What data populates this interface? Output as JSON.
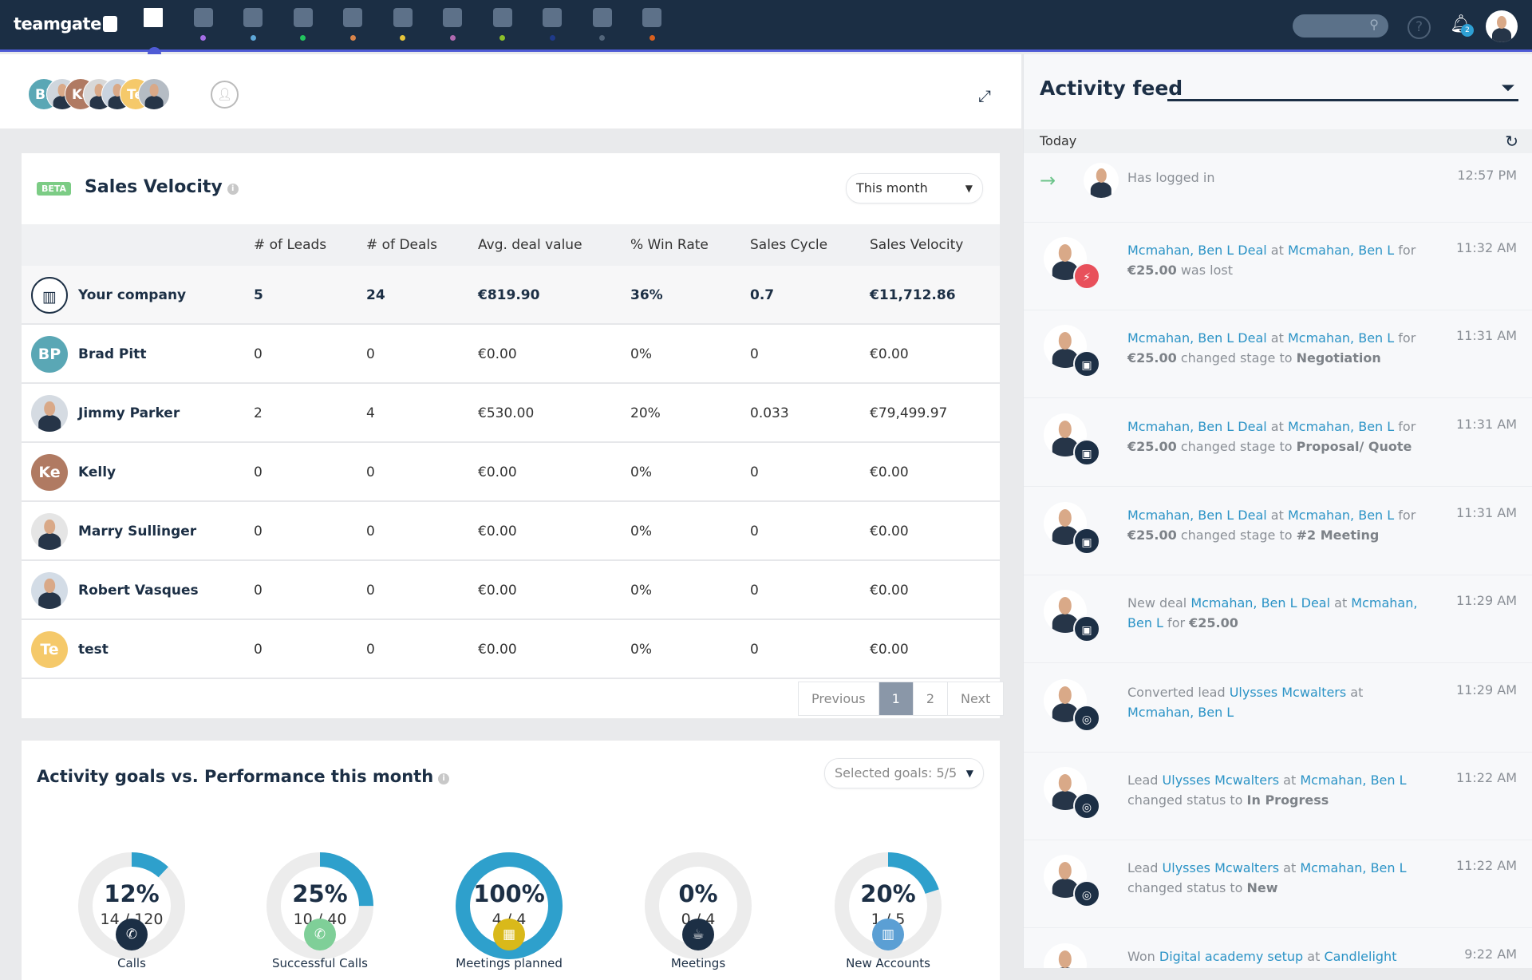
{
  "app": {
    "logo": "teamgate"
  },
  "nav": {
    "icons": [
      {
        "name": "dashboard-icon",
        "dot": ""
      },
      {
        "name": "leads-target-icon",
        "dot": "#a46ee6"
      },
      {
        "name": "companies-icon",
        "dot": "#5ea7d8"
      },
      {
        "name": "contacts-icon",
        "dot": "#22c55e"
      },
      {
        "name": "deals-briefcase-icon",
        "dot": "#d8844a"
      },
      {
        "name": "calendar-icon",
        "dot": "#e5c43a"
      },
      {
        "name": "products-bag-icon",
        "dot": "#b06ab0"
      },
      {
        "name": "attachments-icon",
        "dot": "#8bbf2a"
      },
      {
        "name": "reports-pie-icon",
        "dot": "#1f3a8a"
      },
      {
        "name": "notes-icon",
        "dot": "#52657a"
      },
      {
        "name": "documents-icon",
        "dot": "#d9601e"
      }
    ],
    "notification_count": "2",
    "help": "?"
  },
  "team_avatars": [
    {
      "initials": "BP",
      "color": "#5aa7b5"
    },
    {
      "initials": "",
      "color": "#cfd6dd"
    },
    {
      "initials": "Ke",
      "color": "#b07a62"
    },
    {
      "initials": "",
      "color": "#d8d8d8"
    },
    {
      "initials": "",
      "color": "#c9d3df"
    },
    {
      "initials": "Te",
      "color": "#f5c96a"
    },
    {
      "initials": "",
      "color": "#b5bcc4"
    }
  ],
  "sales_velocity": {
    "badge": "BETA",
    "title": "Sales Velocity",
    "period": "This month",
    "columns": [
      "# of Leads",
      "# of Deals",
      "Avg. deal value",
      "% Win Rate",
      "Sales Cycle",
      "Sales Velocity"
    ],
    "rows": [
      {
        "name": "Your company",
        "initials": "",
        "avatar_color": "#fff",
        "values": [
          "5",
          "24",
          "€819.90",
          "36%",
          "0.7",
          "€11,712.86"
        ]
      },
      {
        "name": "Brad Pitt",
        "initials": "BP",
        "avatar_color": "#5aa7b5",
        "values": [
          "0",
          "0",
          "€0.00",
          "0%",
          "0",
          "€0.00"
        ]
      },
      {
        "name": "Jimmy Parker",
        "initials": "",
        "avatar_color": "#d5dbe2",
        "values": [
          "2",
          "4",
          "€530.00",
          "20%",
          "0.033",
          "€79,499.97"
        ]
      },
      {
        "name": "Kelly",
        "initials": "Ke",
        "avatar_color": "#b07a62",
        "values": [
          "0",
          "0",
          "€0.00",
          "0%",
          "0",
          "€0.00"
        ]
      },
      {
        "name": "Marry Sullinger",
        "initials": "",
        "avatar_color": "#e5e5e5",
        "values": [
          "0",
          "0",
          "€0.00",
          "0%",
          "0",
          "€0.00"
        ]
      },
      {
        "name": "Robert Vasques",
        "initials": "",
        "avatar_color": "#d3dce6",
        "values": [
          "0",
          "0",
          "€0.00",
          "0%",
          "0",
          "€0.00"
        ]
      },
      {
        "name": "test",
        "initials": "Te",
        "avatar_color": "#f5c96a",
        "values": [
          "0",
          "0",
          "€0.00",
          "0%",
          "0",
          "€0.00"
        ]
      }
    ],
    "pagination": {
      "previous": "Previous",
      "pages": [
        "1",
        "2"
      ],
      "current": "1",
      "next": "Next"
    }
  },
  "activity_goals": {
    "title": "Activity goals vs. Performance this month",
    "selected": "Selected goals: 5/5",
    "accent": "#2ea0cc",
    "goals": [
      {
        "label": "Calls",
        "percent": "12%",
        "fraction": "14 / 120",
        "value": 0.12,
        "icon": "phone-icon",
        "glyph": "✆",
        "color": "#1c2f45"
      },
      {
        "label": "Successful Calls",
        "percent": "25%",
        "fraction": "10 / 40",
        "value": 0.25,
        "icon": "phone-success-icon",
        "glyph": "✆",
        "color": "#7fcf98"
      },
      {
        "label": "Meetings planned",
        "percent": "100%",
        "fraction": "4 / 4",
        "value": 1,
        "icon": "calendar-icon",
        "glyph": "▦",
        "color": "#d9b91a"
      },
      {
        "label": "Meetings",
        "percent": "0%",
        "fraction": "0 / 4",
        "value": 0,
        "icon": "coffee-cup-icon",
        "glyph": "☕",
        "color": "#1c2f45"
      },
      {
        "label": "New Accounts",
        "percent": "20%",
        "fraction": "1 / 5",
        "value": 0.2,
        "icon": "building-icon",
        "glyph": "▥",
        "color": "#5b9fd4"
      }
    ]
  },
  "feed": {
    "title": "Activity feed",
    "group": "Today",
    "items": [
      {
        "time": "12:57 PM",
        "badge": "login-arrow-icon",
        "badge_color": "",
        "segments": [
          {
            "t": "Has logged in",
            "k": "plain"
          }
        ]
      },
      {
        "time": "11:32 AM",
        "badge": "lightning-icon",
        "badge_color": "#e8505b",
        "segments": [
          {
            "t": "Mcmahan, Ben L Deal",
            "k": "link"
          },
          {
            "t": " at ",
            "k": "plain"
          },
          {
            "t": "Mcmahan, Ben L",
            "k": "link"
          },
          {
            "t": " for ",
            "k": "plain"
          },
          {
            "t": "€25.00",
            "k": "bold"
          },
          {
            "t": " was lost",
            "k": "plain"
          }
        ]
      },
      {
        "time": "11:31 AM",
        "badge": "briefcase-icon",
        "badge_color": "#1c2f45",
        "segments": [
          {
            "t": "Mcmahan, Ben L Deal",
            "k": "link"
          },
          {
            "t": " at ",
            "k": "plain"
          },
          {
            "t": "Mcmahan, Ben L",
            "k": "link"
          },
          {
            "t": " for ",
            "k": "plain"
          },
          {
            "t": "€25.00",
            "k": "bold"
          },
          {
            "t": " changed stage to ",
            "k": "plain"
          },
          {
            "t": "Negotiation",
            "k": "bold"
          }
        ]
      },
      {
        "time": "11:31 AM",
        "badge": "briefcase-icon",
        "badge_color": "#1c2f45",
        "segments": [
          {
            "t": "Mcmahan, Ben L Deal",
            "k": "link"
          },
          {
            "t": " at ",
            "k": "plain"
          },
          {
            "t": "Mcmahan, Ben L",
            "k": "link"
          },
          {
            "t": " for ",
            "k": "plain"
          },
          {
            "t": "€25.00",
            "k": "bold"
          },
          {
            "t": " changed stage to ",
            "k": "plain"
          },
          {
            "t": "Proposal/ Quote",
            "k": "bold"
          }
        ]
      },
      {
        "time": "11:31 AM",
        "badge": "briefcase-icon",
        "badge_color": "#1c2f45",
        "segments": [
          {
            "t": "Mcmahan, Ben L Deal",
            "k": "link"
          },
          {
            "t": " at ",
            "k": "plain"
          },
          {
            "t": "Mcmahan, Ben L",
            "k": "link"
          },
          {
            "t": " for ",
            "k": "plain"
          },
          {
            "t": "€25.00",
            "k": "bold"
          },
          {
            "t": " changed stage to ",
            "k": "plain"
          },
          {
            "t": "#2 Meeting",
            "k": "bold"
          }
        ]
      },
      {
        "time": "11:29 AM",
        "badge": "briefcase-icon",
        "badge_color": "#1c2f45",
        "segments": [
          {
            "t": "New deal ",
            "k": "plain"
          },
          {
            "t": "Mcmahan, Ben L Deal",
            "k": "link"
          },
          {
            "t": " at ",
            "k": "plain"
          },
          {
            "t": "Mcmahan, Ben L",
            "k": "link"
          },
          {
            "t": " for ",
            "k": "plain"
          },
          {
            "t": "€25.00",
            "k": "bold"
          }
        ]
      },
      {
        "time": "11:29 AM",
        "badge": "target-icon",
        "badge_color": "#1c2f45",
        "segments": [
          {
            "t": "Converted lead ",
            "k": "plain"
          },
          {
            "t": "Ulysses Mcwalters",
            "k": "link"
          },
          {
            "t": " at ",
            "k": "plain"
          },
          {
            "t": "Mcmahan, Ben L",
            "k": "link"
          }
        ]
      },
      {
        "time": "11:22 AM",
        "badge": "target-icon",
        "badge_color": "#1c2f45",
        "segments": [
          {
            "t": "Lead ",
            "k": "plain"
          },
          {
            "t": "Ulysses Mcwalters",
            "k": "link"
          },
          {
            "t": " at ",
            "k": "plain"
          },
          {
            "t": "Mcmahan, Ben L",
            "k": "link"
          },
          {
            "t": " changed status to ",
            "k": "plain"
          },
          {
            "t": "In Progress",
            "k": "bold"
          }
        ]
      },
      {
        "time": "11:22 AM",
        "badge": "target-icon",
        "badge_color": "#1c2f45",
        "segments": [
          {
            "t": "Lead ",
            "k": "plain"
          },
          {
            "t": "Ulysses Mcwalters",
            "k": "link"
          },
          {
            "t": " at ",
            "k": "plain"
          },
          {
            "t": "Mcmahan, Ben L",
            "k": "link"
          },
          {
            "t": " changed status to ",
            "k": "plain"
          },
          {
            "t": "New",
            "k": "bold"
          }
        ]
      },
      {
        "time": "9:22 AM",
        "badge": "",
        "badge_color": "",
        "segments": [
          {
            "t": "Won ",
            "k": "plain"
          },
          {
            "t": "Digital academy setup",
            "k": "link"
          },
          {
            "t": " at ",
            "k": "plain"
          },
          {
            "t": "Candlelight Table",
            "k": "link"
          }
        ]
      }
    ]
  }
}
